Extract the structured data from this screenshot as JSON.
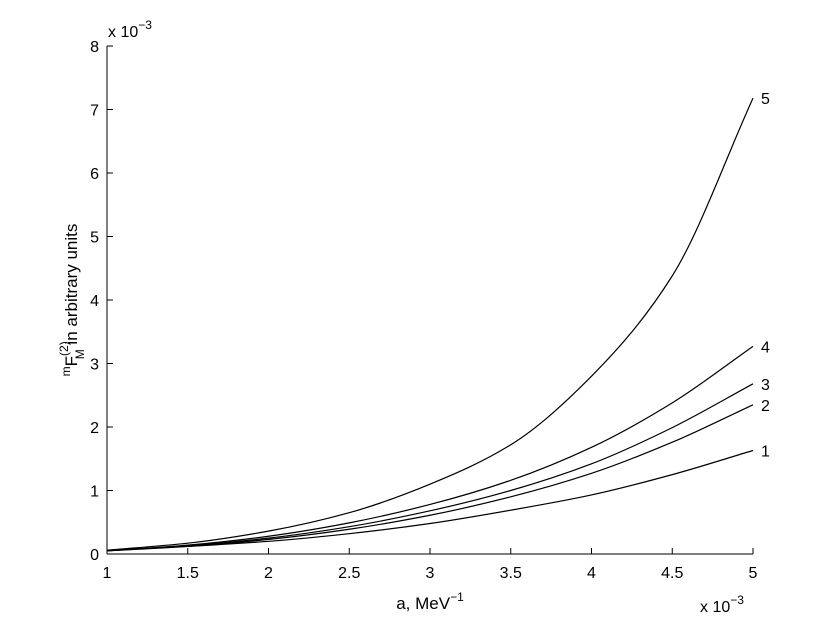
{
  "chart_data": {
    "type": "line",
    "title": "",
    "xlabel_main": "a, MeV",
    "xlabel_sup": "−1",
    "ylabel_main": "F",
    "ylabel_prefix_sup": "m",
    "ylabel_sup": "(2)",
    "ylabel_sub": "M",
    "ylabel_suffix": " in arbitrary units",
    "x_multiplier": "x 10",
    "x_multiplier_exp": "−3",
    "y_multiplier": "x 10",
    "y_multiplier_exp": "−3",
    "xlim": [
      1,
      5
    ],
    "ylim": [
      0,
      8
    ],
    "xticks": [
      1,
      1.5,
      2,
      2.5,
      3,
      3.5,
      4,
      4.5,
      5
    ],
    "xtick_labels": [
      "1",
      "1.5",
      "2",
      "2.5",
      "3",
      "3.5",
      "4",
      "4.5",
      "5"
    ],
    "yticks": [
      0,
      1,
      2,
      3,
      4,
      5,
      6,
      7,
      8
    ],
    "ytick_labels": [
      "0",
      "1",
      "2",
      "3",
      "4",
      "5",
      "6",
      "7",
      "8"
    ],
    "grid": false,
    "x": [
      1,
      1.5,
      2,
      2.5,
      3,
      3.5,
      4,
      4.5,
      5
    ],
    "series": [
      {
        "name": "1",
        "label": "1",
        "values": [
          0.06,
          0.12,
          0.2,
          0.32,
          0.48,
          0.69,
          0.93,
          1.25,
          1.63
        ]
      },
      {
        "name": "2",
        "label": "2",
        "values": [
          0.05,
          0.12,
          0.23,
          0.39,
          0.61,
          0.9,
          1.27,
          1.76,
          2.35
        ]
      },
      {
        "name": "3",
        "label": "3",
        "values": [
          0.05,
          0.13,
          0.25,
          0.43,
          0.68,
          1.0,
          1.42,
          1.99,
          2.68
        ]
      },
      {
        "name": "4",
        "label": "4",
        "values": [
          0.05,
          0.14,
          0.28,
          0.49,
          0.78,
          1.16,
          1.68,
          2.38,
          3.27
        ]
      },
      {
        "name": "5",
        "label": "5",
        "values": [
          0.06,
          0.17,
          0.36,
          0.65,
          1.1,
          1.72,
          2.8,
          4.38,
          7.18
        ]
      }
    ]
  }
}
